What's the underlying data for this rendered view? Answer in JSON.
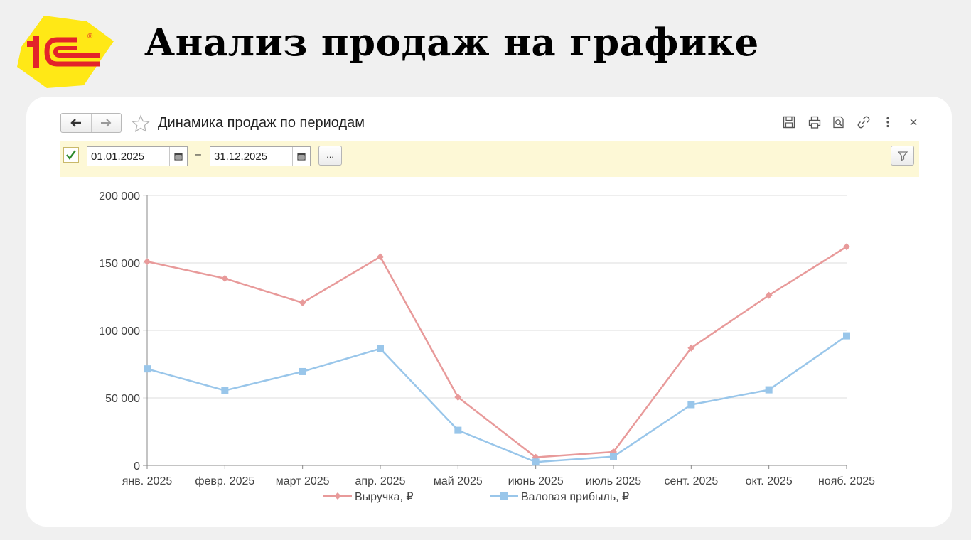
{
  "slide": {
    "title": "Анализ продаж на графике",
    "logo_text": "1С",
    "logo_mark": "®"
  },
  "form": {
    "title": "Динамика продаж по периодам",
    "toolbar_icons": [
      "save-icon",
      "print-icon",
      "preview-icon",
      "link-icon",
      "more-vertical-icon",
      "close-icon"
    ]
  },
  "filter": {
    "checkbox_checked": true,
    "date_from": "01.01.2025",
    "separator": "–",
    "date_to": "31.12.2025",
    "more_label": "..."
  },
  "colors": {
    "revenue": "#e89a9a",
    "profit": "#99c6ea",
    "filter_bg": "#fdf8d6",
    "logo_yellow": "#ffe816",
    "logo_red": "#e3232a"
  },
  "chart_data": {
    "type": "line",
    "categories": [
      "янв. 2025",
      "февр. 2025",
      "март 2025",
      "апр. 2025",
      "май 2025",
      "июнь 2025",
      "июль 2025",
      "сент. 2025",
      "окт. 2025",
      "нояб. 2025"
    ],
    "series": [
      {
        "name": "Выручка, ₽",
        "marker": "diamond",
        "values": [
          151000,
          138500,
          120500,
          154500,
          50500,
          6000,
          10000,
          87000,
          126000,
          162000
        ]
      },
      {
        "name": "Валовая прибыль, ₽",
        "marker": "square",
        "values": [
          71500,
          55500,
          69500,
          86500,
          26000,
          2500,
          6500,
          45000,
          56000,
          96000
        ]
      }
    ],
    "yticks": [
      "0",
      "50 000",
      "100 000",
      "150 000",
      "200 000"
    ],
    "ylim": [
      0,
      200000
    ],
    "grid": true,
    "legend": "bottom"
  }
}
